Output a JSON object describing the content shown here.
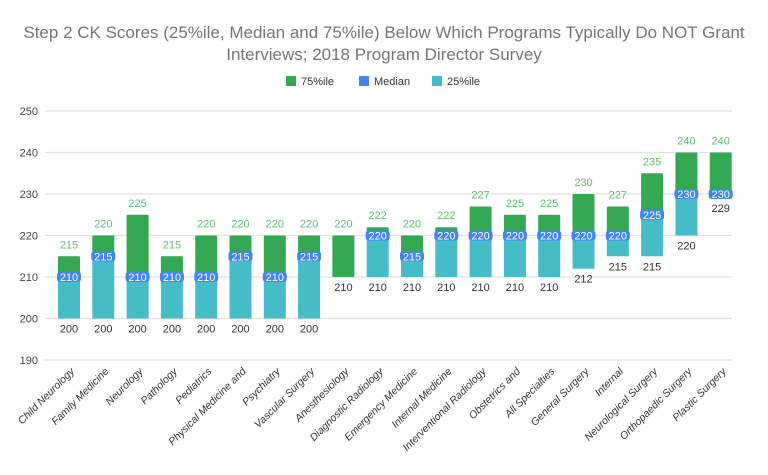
{
  "chart_data": {
    "type": "bar",
    "title_lines": [
      "Step 2 CK Scores (25%ile, Median and 75%ile) Below Which Programs Typically Do NOT Grant",
      "Interviews; 2018 Program Director Survey"
    ],
    "legend": {
      "placement": "top",
      "entries": [
        {
          "name": "75%ile",
          "color": "#34a853"
        },
        {
          "name": "Median",
          "color": "#4285f4"
        },
        {
          "name": "25%ile",
          "color": "#46bdc6"
        }
      ]
    },
    "ylim": [
      190,
      250
    ],
    "yticks": [
      190,
      200,
      210,
      220,
      230,
      240,
      250
    ],
    "grid": true,
    "categories": [
      "Child Neurology",
      "Family Medicine",
      "Neurology",
      "Pathology",
      "Pediatrics",
      "Physical Medicine and",
      "Psychiatry",
      "Vascular Surgery",
      "Anesthesiology",
      "Diagnostic Radiology",
      "Emergency Medicine",
      "Internal Medicine",
      "Interventional Radiology",
      "Obstetrics and",
      "All Specialties",
      "General Surgery",
      "Internal",
      "Neurological Surgery",
      "Orthopaedic Surgery",
      "Plastic Surgery"
    ],
    "series": [
      {
        "name": "25%ile",
        "values": [
          200,
          200,
          200,
          200,
          200,
          200,
          200,
          200,
          210,
          210,
          210,
          210,
          210,
          210,
          210,
          212,
          215,
          215,
          220,
          229
        ]
      },
      {
        "name": "Median",
        "values": [
          210,
          215,
          210,
          210,
          210,
          215,
          210,
          215,
          210,
          220,
          215,
          220,
          220,
          220,
          220,
          220,
          220,
          225,
          230,
          230
        ]
      },
      {
        "name": "75%ile",
        "values": [
          215,
          220,
          225,
          215,
          220,
          220,
          220,
          220,
          220,
          222,
          220,
          222,
          227,
          225,
          225,
          230,
          227,
          235,
          240,
          240
        ]
      }
    ]
  }
}
